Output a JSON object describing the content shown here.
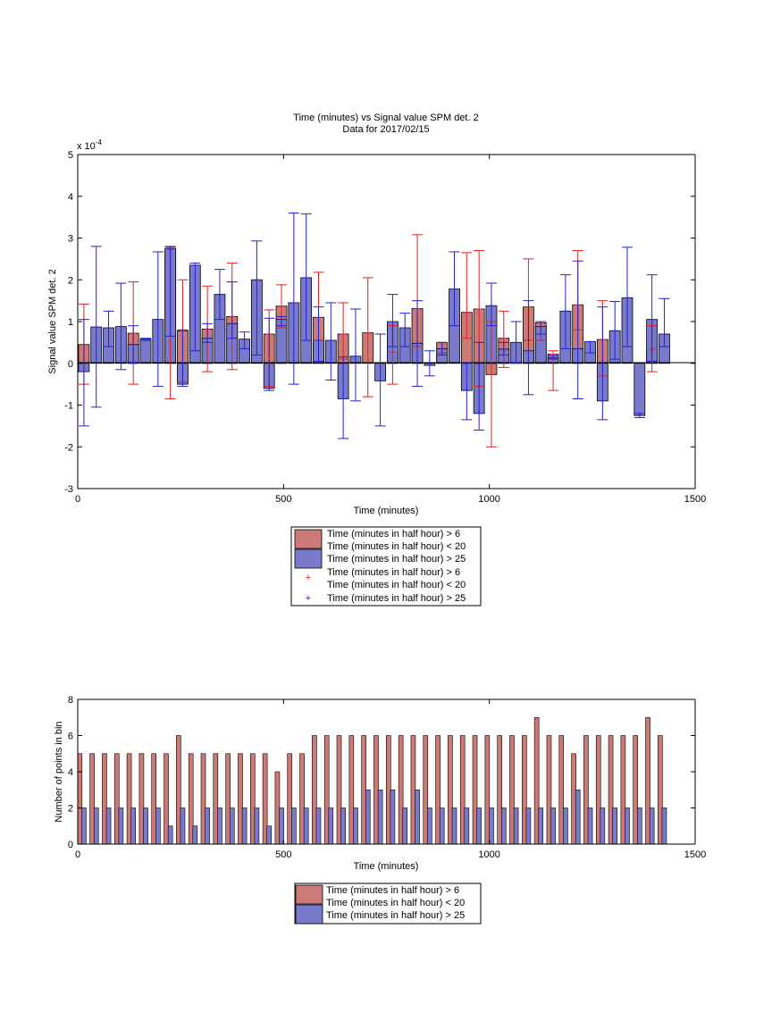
{
  "top_chart": {
    "title_line1": "Time (minutes) vs Signal value SPM det. 2",
    "title_line2": "Data for 2017/02/15",
    "xlabel": "Time (minutes)",
    "ylabel": "Signal value SPM det. 2",
    "exponent_label": "x 10",
    "exponent_power": "-4",
    "legend": [
      {
        "name": "Time (minutes in half hour) > 6",
        "color": "#cc7a77",
        "kind": "patch"
      },
      {
        "name": "Time (minutes in half hour) < 20",
        "color": "#7a7acc",
        "kind": "patch"
      },
      {
        "name": "Time (minutes in half hour) > 25",
        "color": "#7a7acc",
        "kind": "patch"
      },
      {
        "name": "Time (minutes in half hour) > 6",
        "color": "#dd2222",
        "kind": "plus"
      },
      {
        "name": "Time (minutes in half hour) < 20",
        "color": "#dd2222",
        "kind": "plus"
      },
      {
        "name": "Time (minutes in half hour) > 25",
        "color": "#2222cc",
        "kind": "plus"
      }
    ]
  },
  "bottom_chart": {
    "xlabel": "Time (minutes)",
    "ylabel": "Number of points in bin",
    "legend": [
      {
        "name": "Time (minutes in half hour) > 6",
        "color": "#cc7a77"
      },
      {
        "name": "Time (minutes in half hour) < 20",
        "color": "#7a7acc"
      },
      {
        "name": "Time (minutes in half hour) > 25",
        "color": "#7a7acc"
      }
    ]
  },
  "chart_data": [
    {
      "type": "bar",
      "title": "Time (minutes) vs Signal value SPM det. 2",
      "subtitle": "Data for 2017/02/15",
      "xlabel": "Time (minutes)",
      "ylabel": "Signal value SPM det. 2",
      "y_scale_factor": "x 10^-4",
      "xlim": [
        0,
        1500
      ],
      "ylim": [
        -3,
        5
      ],
      "xticks": [
        0,
        500,
        1000,
        1500
      ],
      "yticks": [
        -3,
        -2,
        -1,
        0,
        1,
        2,
        3,
        4,
        5
      ],
      "grid": false,
      "legend_position": "below",
      "series": [
        {
          "color": "#cc7a77",
          "errorbar_color": "#dd2222",
          "x": [
            15,
            75,
            135,
            195,
            255,
            315,
            375,
            435,
            495,
            555,
            615,
            675,
            735,
            795,
            855,
            915,
            975,
            1035,
            1095,
            1155,
            1215,
            1275,
            1335,
            1395,
            45,
            105,
            165,
            225,
            285,
            345,
            405,
            465,
            525,
            585,
            645,
            705,
            765,
            825,
            885,
            945,
            1005,
            1065,
            1125,
            1185,
            1245,
            1305,
            1365,
            1425
          ],
          "values": [
            0.45,
            0.0,
            0.72,
            0.0,
            0.78,
            0.82,
            1.12,
            0.0,
            1.37,
            0.0,
            0.0,
            0.0,
            0.0,
            0.0,
            0.0,
            0.0,
            1.3,
            0.6,
            1.35,
            0.22,
            1.4,
            0.57,
            0.0,
            0.34,
            0.0,
            0.0,
            0.0,
            2.72,
            0.0,
            0.0,
            0.0,
            0.7,
            0.0,
            1.1,
            0.7,
            0.73,
            0.27,
            1.31,
            0.5,
            1.22,
            -0.27,
            0.0,
            0.97,
            0.0,
            0.0,
            0.0,
            0.0,
            0.0
          ],
          "err_low": [
            -0.5,
            0,
            -0.5,
            0,
            -0.45,
            -0.2,
            -0.15,
            0,
            0.85,
            0,
            0,
            0,
            0,
            0,
            0,
            0,
            -0.55,
            -0.1,
            0.55,
            -0.65,
            0.8,
            -0.3,
            0,
            -0.2,
            0,
            0,
            0,
            -0.85,
            0,
            0,
            0,
            -0.55,
            0,
            0.55,
            0.1,
            -0.8,
            -0.5,
            0.4,
            0.25,
            0.6,
            -2.0,
            0,
            0.55,
            0,
            0,
            0,
            0,
            0
          ],
          "err_high": [
            1.42,
            0,
            1.95,
            0,
            2.0,
            1.85,
            2.4,
            0,
            1.88,
            0,
            0,
            0,
            0,
            0,
            0,
            0,
            2.7,
            1.25,
            2.5,
            0.3,
            2.7,
            1.5,
            0,
            0.9,
            0,
            0,
            0,
            2.78,
            0,
            0,
            0,
            1.28,
            0,
            2.18,
            1.45,
            2.05,
            0.9,
            3.08,
            0.5,
            2.65,
            1.0,
            0,
            1.0,
            0,
            0,
            0,
            0,
            0
          ]
        },
        {
          "color": "#7a7acc",
          "errorbar_color": "#2222cc",
          "x": [
            15,
            45,
            75,
            105,
            135,
            165,
            195,
            225,
            255,
            285,
            315,
            345,
            375,
            405,
            435,
            465,
            495,
            525,
            555,
            585,
            615,
            645,
            675,
            705,
            735,
            765,
            795,
            825,
            855,
            885,
            915,
            945,
            975,
            1005,
            1035,
            1065,
            1095,
            1125,
            1155,
            1185,
            1215,
            1245,
            1275,
            1305,
            1335,
            1365,
            1395,
            1425
          ],
          "values": [
            -0.2,
            0.87,
            0.85,
            0.88,
            0.45,
            0.58,
            1.05,
            2.75,
            -0.5,
            2.35,
            0.6,
            1.65,
            0.95,
            0.58,
            2.0,
            -0.6,
            1.05,
            1.45,
            2.05,
            0.55,
            0.55,
            -0.85,
            0.17,
            0.0,
            -0.42,
            1.0,
            0.85,
            0.48,
            -0.05,
            0.35,
            1.78,
            -0.65,
            -1.2,
            1.38,
            0.34,
            0.5,
            0.3,
            0.88,
            0.13,
            1.25,
            0.35,
            0.52,
            -0.9,
            0.78,
            1.57,
            -1.25,
            1.05,
            0.7
          ],
          "err_low": [
            -1.5,
            -1.05,
            0.4,
            -0.15,
            0.0,
            0.55,
            -0.55,
            0.65,
            -0.55,
            0.3,
            0.5,
            1.05,
            0.6,
            0.35,
            0.2,
            -0.65,
            0.9,
            -0.5,
            0.55,
            0.05,
            -0.4,
            -1.8,
            -0.9,
            0,
            -1.5,
            0.4,
            0.4,
            -0.55,
            -0.3,
            0.2,
            0.9,
            -1.35,
            -1.6,
            0.9,
            0.2,
            0,
            -0.75,
            0.7,
            0.1,
            0.35,
            -0.85,
            0.25,
            -1.35,
            0.1,
            0.4,
            -1.3,
            0.05,
            0.4
          ],
          "err_high": [
            1.05,
            2.8,
            1.25,
            1.92,
            0.9,
            0.6,
            2.67,
            2.8,
            0.8,
            2.4,
            0.95,
            2.25,
            1.95,
            0.75,
            2.93,
            1.08,
            1.12,
            3.6,
            3.58,
            1.35,
            1.45,
            0.15,
            1.3,
            0,
            0.7,
            1.65,
            1.2,
            1.5,
            0.3,
            0.5,
            2.67,
            0.0,
            0.5,
            1.92,
            0.5,
            1.0,
            1.5,
            1.0,
            0.18,
            2.12,
            2.45,
            0.52,
            1.35,
            1.48,
            2.78,
            -1.2,
            2.12,
            1.55
          ]
        }
      ]
    },
    {
      "type": "bar",
      "xlabel": "Time (minutes)",
      "ylabel": "Number of points in bin",
      "xlim": [
        0,
        1500
      ],
      "ylim": [
        0,
        8
      ],
      "xticks": [
        0,
        500,
        1000,
        1500
      ],
      "yticks": [
        0,
        2,
        4,
        6,
        8
      ],
      "grid": false,
      "legend_position": "below",
      "series": [
        {
          "color": "#cc7a77",
          "x": [
            5,
            35,
            65,
            95,
            125,
            155,
            185,
            215,
            245,
            275,
            305,
            335,
            365,
            395,
            425,
            455,
            485,
            515,
            545,
            575,
            605,
            635,
            665,
            695,
            725,
            755,
            785,
            815,
            845,
            875,
            905,
            935,
            965,
            995,
            1025,
            1055,
            1085,
            1115,
            1145,
            1175,
            1205,
            1235,
            1265,
            1295,
            1325,
            1355,
            1385,
            1415
          ],
          "values": [
            5,
            5,
            5,
            5,
            5,
            5,
            5,
            5,
            6,
            5,
            5,
            5,
            5,
            5,
            5,
            5,
            4,
            5,
            5,
            6,
            6,
            6,
            6,
            6,
            6,
            6,
            6,
            6,
            6,
            6,
            6,
            6,
            6,
            6,
            6,
            6,
            6,
            7,
            6,
            6,
            5,
            6,
            6,
            6,
            6,
            6,
            7,
            6
          ]
        },
        {
          "color": "#7a7acc",
          "x": [
            15,
            45,
            75,
            105,
            135,
            165,
            195,
            225,
            255,
            285,
            315,
            345,
            375,
            405,
            435,
            465,
            495,
            525,
            555,
            585,
            615,
            645,
            675,
            705,
            735,
            765,
            795,
            825,
            855,
            885,
            915,
            945,
            975,
            1005,
            1035,
            1065,
            1095,
            1125,
            1155,
            1185,
            1215,
            1245,
            1275,
            1305,
            1335,
            1365,
            1395,
            1425
          ],
          "values": [
            2,
            2,
            2,
            2,
            2,
            2,
            2,
            1,
            2,
            1,
            2,
            2,
            2,
            2,
            2,
            1,
            2,
            2,
            2,
            2,
            2,
            2,
            2,
            3,
            3,
            3,
            2,
            3,
            2,
            2,
            2,
            2,
            2,
            2,
            2,
            2,
            2,
            2,
            2,
            2,
            3,
            2,
            2,
            2,
            2,
            2,
            2,
            2
          ]
        }
      ]
    }
  ]
}
